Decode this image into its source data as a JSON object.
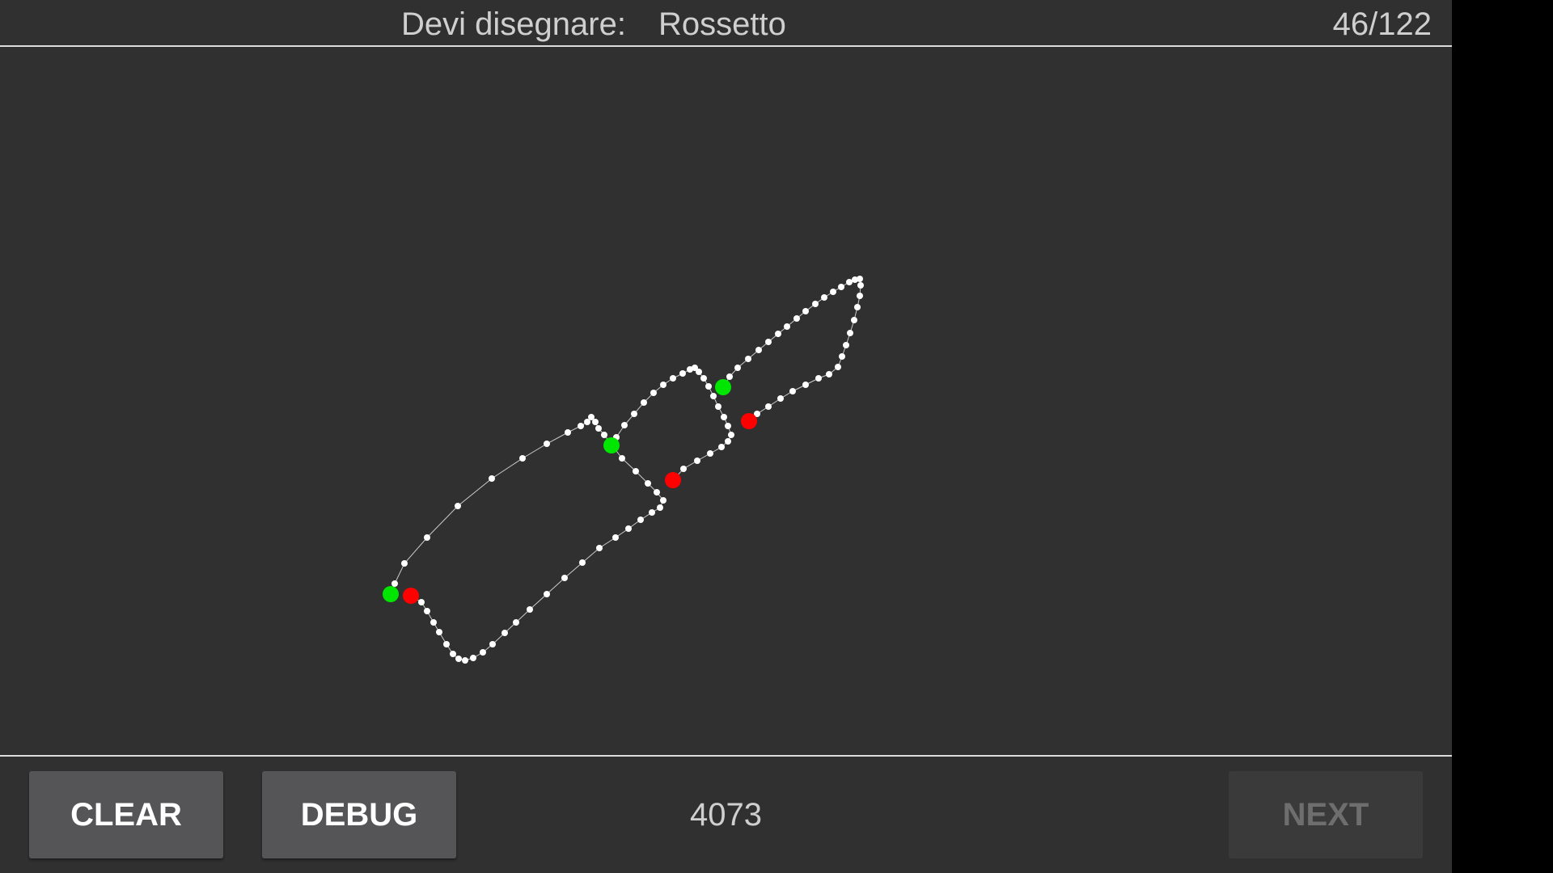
{
  "header": {
    "prompt_label": "Devi disegnare:",
    "prompt_word": "Rossetto",
    "progress": "46/122"
  },
  "footer": {
    "clear_label": "CLEAR",
    "debug_label": "DEBUG",
    "counter": "4073",
    "next_label": "NEXT",
    "next_enabled": false
  },
  "colors": {
    "background": "#303030",
    "stroke": "#ffffff",
    "stroke_start": "#00e600",
    "stroke_end": "#ff0000",
    "button": "#555557",
    "button_disabled": "#3a3a3a"
  }
}
